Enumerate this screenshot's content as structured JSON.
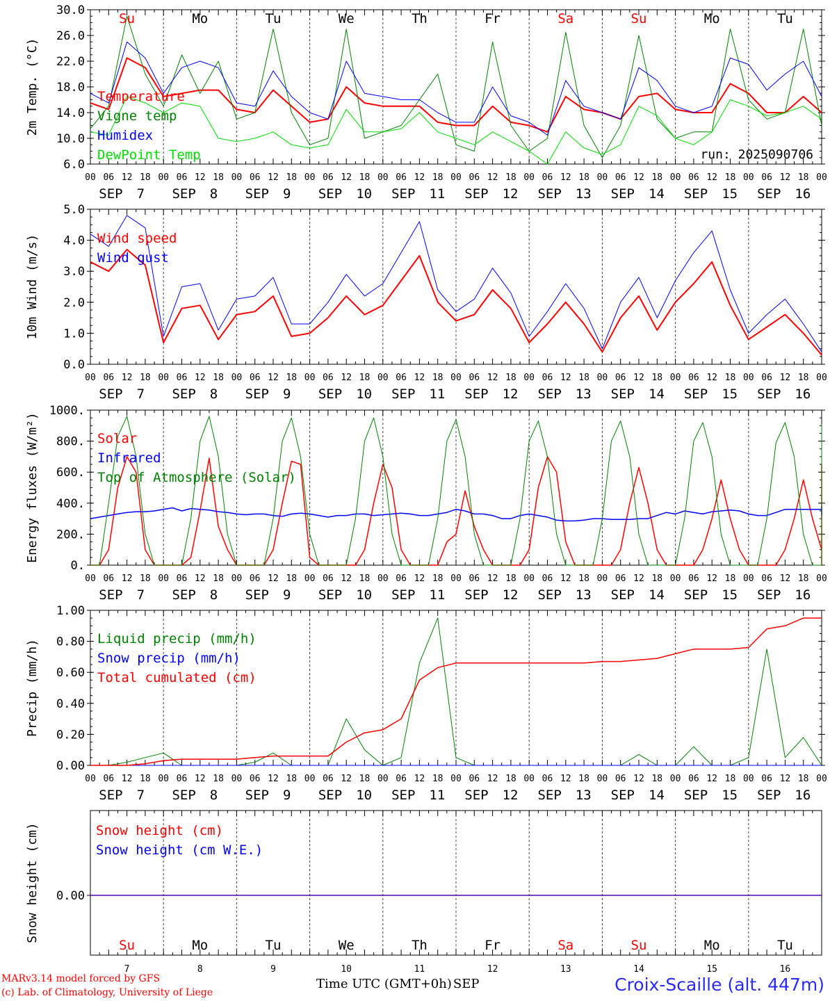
{
  "run_label": "run: 2025090706",
  "x_axis": {
    "hour_ticks": [
      "00",
      "06",
      "12",
      "18"
    ],
    "month": "SEP",
    "dates": [
      "7",
      "8",
      "9",
      "10",
      "11",
      "12",
      "13",
      "14",
      "15",
      "16"
    ],
    "weekdays": [
      "Su",
      "Mo",
      "Tu",
      "We",
      "Th",
      "Fr",
      "Sa",
      "Su",
      "Mo",
      "Tu"
    ],
    "weekday_colors": [
      "#ff0000",
      "#000000",
      "#000000",
      "#000000",
      "#000000",
      "#000000",
      "#ff0000",
      "#ff0000",
      "#000000",
      "#000000"
    ],
    "time_title": "Time UTC (GMT+0h)",
    "time_month": "SEP"
  },
  "credits": {
    "line1": "MARv3.14 model forced by GFS",
    "line2": "(c) Lab. of Climatology, University of Liege"
  },
  "station": "Croix-Scaille (alt. 447m)",
  "colors": {
    "red": "#ff0000",
    "dark_green": "#008000",
    "blue": "#0000ff",
    "light_green": "#00dd00"
  },
  "chart_data": [
    {
      "type": "line",
      "ylabel": "2m Temp. (°C)",
      "ylim": [
        6,
        30
      ],
      "yticks": [
        "6.0",
        "10.0",
        "14.0",
        "18.0",
        "22.0",
        "26.0",
        "30.0"
      ],
      "x_unit": "hours since SEP 7 00 UTC",
      "x": [
        0,
        6,
        12,
        18,
        24,
        30,
        36,
        42,
        48,
        54,
        60,
        66,
        72,
        78,
        84,
        90,
        96,
        102,
        108,
        114,
        120,
        126,
        132,
        138,
        144,
        150,
        156,
        162,
        168,
        174,
        180,
        186,
        192,
        198,
        204,
        210,
        216,
        222,
        228,
        234,
        240
      ],
      "series": [
        {
          "name": "Temperature",
          "color": "#ff0000",
          "width": 2,
          "values": [
            15.5,
            14.5,
            22.5,
            21,
            16.5,
            17,
            17.5,
            17.5,
            14.5,
            14,
            17.5,
            15,
            12.5,
            13,
            18,
            15.5,
            15,
            15,
            15,
            12.5,
            12,
            12,
            15,
            12.5,
            12,
            11,
            16.5,
            14.5,
            14,
            13,
            16.5,
            17,
            14.5,
            14,
            14,
            18.5,
            17,
            14,
            14,
            16.5,
            14
          ]
        },
        {
          "name": "Vigne temp",
          "color": "#008000",
          "width": 1,
          "values": [
            11.5,
            15,
            29,
            20,
            15,
            23,
            17,
            22,
            13,
            14,
            27,
            14,
            9,
            10,
            27,
            10,
            11,
            12,
            16,
            20,
            9,
            8,
            25,
            12,
            8,
            10,
            26.5,
            12,
            7,
            12,
            26,
            13,
            10,
            11,
            11,
            27,
            16,
            13,
            14,
            27,
            12
          ]
        },
        {
          "name": "Humidex",
          "color": "#0000ff",
          "width": 1,
          "values": [
            17,
            15.5,
            25,
            22.5,
            17,
            21,
            22,
            21,
            15.5,
            15,
            20.5,
            16.5,
            14,
            13,
            22,
            17,
            16.5,
            16,
            16,
            14,
            12.5,
            12.5,
            18,
            13.5,
            12.5,
            10.5,
            19,
            15,
            14,
            13,
            21,
            19,
            15,
            14,
            15,
            22.5,
            21.5,
            17.5,
            20,
            22,
            16.5
          ]
        },
        {
          "name": "DewPoint Temp",
          "color": "#00dd00",
          "width": 1,
          "values": [
            11,
            10.5,
            16.5,
            15.5,
            14,
            15.5,
            15,
            10,
            9.5,
            10,
            11,
            9,
            8.5,
            9,
            14.5,
            11,
            11,
            11.5,
            14,
            11,
            10,
            9,
            11,
            9.5,
            8,
            6,
            11,
            8.5,
            7.5,
            9,
            15,
            13.5,
            10,
            9,
            11,
            16,
            15,
            13.5,
            14,
            15,
            13
          ]
        }
      ],
      "annotations": {
        "run": "run: 2025090706"
      }
    },
    {
      "type": "line",
      "ylabel": "10m Wind (m/s)",
      "ylim": [
        0,
        5
      ],
      "yticks": [
        "0.0",
        "1.0",
        "2.0",
        "3.0",
        "4.0",
        "5.0"
      ],
      "x": [
        0,
        6,
        12,
        18,
        24,
        30,
        36,
        42,
        48,
        54,
        60,
        66,
        72,
        78,
        84,
        90,
        96,
        102,
        108,
        114,
        120,
        126,
        132,
        138,
        144,
        150,
        156,
        162,
        168,
        174,
        180,
        186,
        192,
        198,
        204,
        210,
        216,
        222,
        228,
        234,
        240
      ],
      "series": [
        {
          "name": "Wind speed",
          "color": "#ff0000",
          "width": 2,
          "values": [
            3.3,
            3.0,
            3.7,
            3.2,
            0.7,
            1.8,
            1.9,
            0.8,
            1.6,
            1.7,
            2.2,
            0.9,
            1.0,
            1.5,
            2.2,
            1.6,
            1.9,
            2.7,
            3.5,
            2.0,
            1.4,
            1.6,
            2.4,
            1.8,
            0.7,
            1.3,
            2.0,
            1.3,
            0.4,
            1.5,
            2.2,
            1.1,
            2.0,
            2.6,
            3.3,
            1.9,
            0.8,
            1.2,
            1.6,
            1.0,
            0.3
          ]
        },
        {
          "name": "Wind gust",
          "color": "#0000ff",
          "width": 1,
          "values": [
            4.2,
            3.8,
            4.8,
            4.4,
            0.9,
            2.5,
            2.6,
            1.1,
            2.1,
            2.2,
            2.8,
            1.3,
            1.3,
            2.0,
            2.9,
            2.2,
            2.6,
            3.6,
            4.6,
            2.4,
            1.7,
            2.1,
            3.1,
            2.3,
            0.9,
            1.7,
            2.6,
            1.8,
            0.5,
            2.0,
            2.8,
            1.5,
            2.7,
            3.6,
            4.3,
            2.4,
            1.0,
            1.6,
            2.1,
            1.3,
            0.4
          ]
        }
      ]
    },
    {
      "type": "line",
      "ylabel": "Energy fluxes (W/m²)",
      "ylim": [
        0,
        1000
      ],
      "yticks": [
        "0.",
        "200.",
        "400.",
        "600.",
        "800.",
        "1000."
      ],
      "x_step_hours": 3,
      "series": [
        {
          "name": "Solar",
          "color": "#ff0000",
          "width": 1.5,
          "values": [
            0,
            0,
            100,
            500,
            700,
            600,
            100,
            0,
            0,
            0,
            0,
            50,
            350,
            690,
            250,
            100,
            0,
            0,
            0,
            0,
            100,
            400,
            670,
            650,
            50,
            0,
            0,
            0,
            0,
            0,
            100,
            400,
            650,
            500,
            100,
            0,
            0,
            0,
            0,
            150,
            200,
            480,
            250,
            100,
            0,
            0,
            0,
            0,
            100,
            500,
            700,
            600,
            150,
            0,
            0,
            0,
            0,
            0,
            100,
            400,
            630,
            400,
            100,
            0,
            0,
            0,
            0,
            100,
            300,
            550,
            300,
            100,
            0,
            0,
            0,
            0,
            100,
            300,
            550,
            300,
            100,
            0,
            0,
            0,
            0,
            100,
            400,
            650,
            550,
            100,
            0
          ]
        },
        {
          "name": "Infrared",
          "color": "#0000ff",
          "width": 1.5,
          "values": [
            300,
            310,
            320,
            330,
            340,
            345,
            345,
            350,
            360,
            370,
            350,
            365,
            360,
            355,
            345,
            340,
            330,
            325,
            330,
            330,
            320,
            315,
            330,
            335,
            330,
            320,
            310,
            320,
            320,
            330,
            330,
            320,
            325,
            330,
            335,
            330,
            320,
            320,
            330,
            340,
            360,
            350,
            330,
            330,
            320,
            300,
            300,
            320,
            330,
            320,
            310,
            290,
            285,
            285,
            290,
            300,
            300,
            295,
            295,
            295,
            300,
            300,
            320,
            340,
            330,
            350,
            340,
            330,
            345,
            350,
            355,
            350,
            330,
            320,
            320,
            340,
            360,
            360,
            360,
            360,
            360,
            350,
            340,
            350,
            365,
            375,
            375,
            380,
            370,
            320,
            360
          ]
        },
        {
          "name": "Top of Atmosphere (Solar)",
          "color": "#008000",
          "width": 1,
          "values": [
            0,
            0,
            400,
            830,
            960,
            700,
            200,
            0,
            0,
            0,
            0,
            300,
            800,
            960,
            700,
            200,
            0,
            0,
            0,
            0,
            300,
            800,
            950,
            700,
            200,
            0,
            0,
            0,
            0,
            300,
            800,
            950,
            700,
            200,
            0,
            0,
            0,
            0,
            300,
            800,
            940,
            700,
            200,
            0,
            0,
            0,
            0,
            300,
            800,
            930,
            700,
            200,
            0,
            0,
            0,
            0,
            300,
            800,
            930,
            700,
            200,
            0,
            0,
            0,
            0,
            300,
            800,
            920,
            700,
            200,
            0,
            0,
            0,
            0,
            300,
            790,
            920,
            700,
            200,
            0,
            0,
            0,
            0,
            300,
            790,
            910,
            700,
            200,
            0,
            0,
            0
          ]
        }
      ]
    },
    {
      "type": "line",
      "ylabel": "Precip (mm/h)",
      "ylim": [
        0,
        1
      ],
      "yticks": [
        "0.00",
        "0.20",
        "0.40",
        "0.60",
        "0.80",
        "1.00"
      ],
      "x": [
        0,
        6,
        12,
        18,
        24,
        30,
        36,
        42,
        48,
        54,
        60,
        66,
        72,
        78,
        84,
        90,
        96,
        102,
        108,
        114,
        120,
        126,
        132,
        138,
        144,
        150,
        156,
        162,
        168,
        174,
        180,
        186,
        192,
        198,
        204,
        210,
        216,
        222,
        228,
        234,
        240
      ],
      "series": [
        {
          "name": "Liquid precip (mm/h)",
          "color": "#008000",
          "width": 1,
          "values": [
            0,
            0,
            0.02,
            0.05,
            0.08,
            0,
            0,
            0,
            0,
            0.02,
            0.08,
            0,
            0,
            0,
            0.3,
            0.1,
            0,
            0.05,
            0.66,
            0.95,
            0.05,
            0,
            0,
            0,
            0,
            0,
            0,
            0,
            0,
            0,
            0.07,
            0,
            0,
            0.12,
            0,
            0,
            0.05,
            0.75,
            0.05,
            0.18,
            0
          ]
        },
        {
          "name": "Snow precip (mm/h)",
          "color": "#0000ff",
          "width": 1,
          "values": [
            0,
            0,
            0,
            0,
            0,
            0,
            0,
            0,
            0,
            0,
            0,
            0,
            0,
            0,
            0,
            0,
            0,
            0,
            0,
            0,
            0,
            0,
            0,
            0,
            0,
            0,
            0,
            0,
            0,
            0,
            0,
            0,
            0,
            0,
            0,
            0,
            0,
            0,
            0,
            0,
            0
          ]
        },
        {
          "name": "Total cumulated (cm)",
          "color": "#ff0000",
          "width": 1.5,
          "values": [
            0,
            0,
            0,
            0.01,
            0.03,
            0.04,
            0.04,
            0.04,
            0.04,
            0.05,
            0.06,
            0.06,
            0.06,
            0.06,
            0.15,
            0.21,
            0.23,
            0.3,
            0.55,
            0.63,
            0.66,
            0.66,
            0.66,
            0.66,
            0.66,
            0.66,
            0.66,
            0.66,
            0.67,
            0.67,
            0.68,
            0.69,
            0.72,
            0.75,
            0.75,
            0.75,
            0.76,
            0.88,
            0.9,
            0.95,
            0.95
          ]
        }
      ]
    },
    {
      "type": "line",
      "ylabel": "Snow height (cm)",
      "yticks": [
        "0.00"
      ],
      "series": [
        {
          "name": "Snow height (cm)",
          "color": "#ff0000",
          "width": 1.5,
          "values": [
            0,
            0
          ]
        },
        {
          "name": "Snow height (cm W.E.)",
          "color": "#0000ff",
          "width": 1,
          "values": [
            0,
            0
          ]
        }
      ]
    }
  ]
}
